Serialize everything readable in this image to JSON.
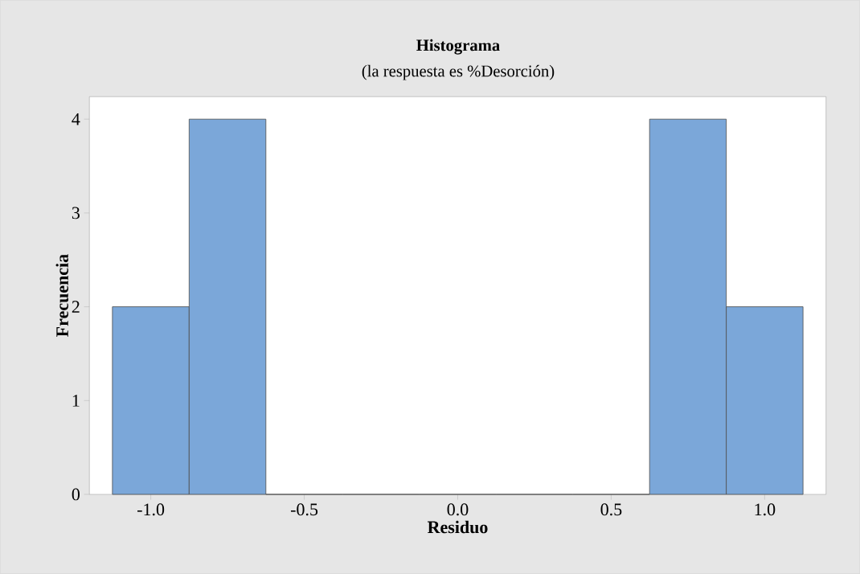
{
  "chart_data": {
    "type": "histogram",
    "title": "Histograma",
    "subtitle": "(la respuesta es %Desorción)",
    "xlabel": "Residuo",
    "ylabel": "Frecuencia",
    "bins": [
      -1.125,
      -0.875,
      -0.625,
      -0.375,
      -0.125,
      0.125,
      0.375,
      0.625,
      0.875,
      1.125
    ],
    "values": [
      2,
      4,
      0,
      0,
      0,
      0,
      0,
      4,
      2
    ],
    "color": "#7ba7d9",
    "xlim": [
      -1.2,
      1.2
    ],
    "ylim": [
      0,
      4.24
    ],
    "xticks": [
      {
        "value": -1.0,
        "label": "-1.0"
      },
      {
        "value": -0.5,
        "label": "-0.5"
      },
      {
        "value": 0.0,
        "label": "0.0"
      },
      {
        "value": 0.5,
        "label": "0.5"
      },
      {
        "value": 1.0,
        "label": "1.0"
      }
    ],
    "yticks": [
      0,
      1,
      2,
      3,
      4
    ]
  }
}
